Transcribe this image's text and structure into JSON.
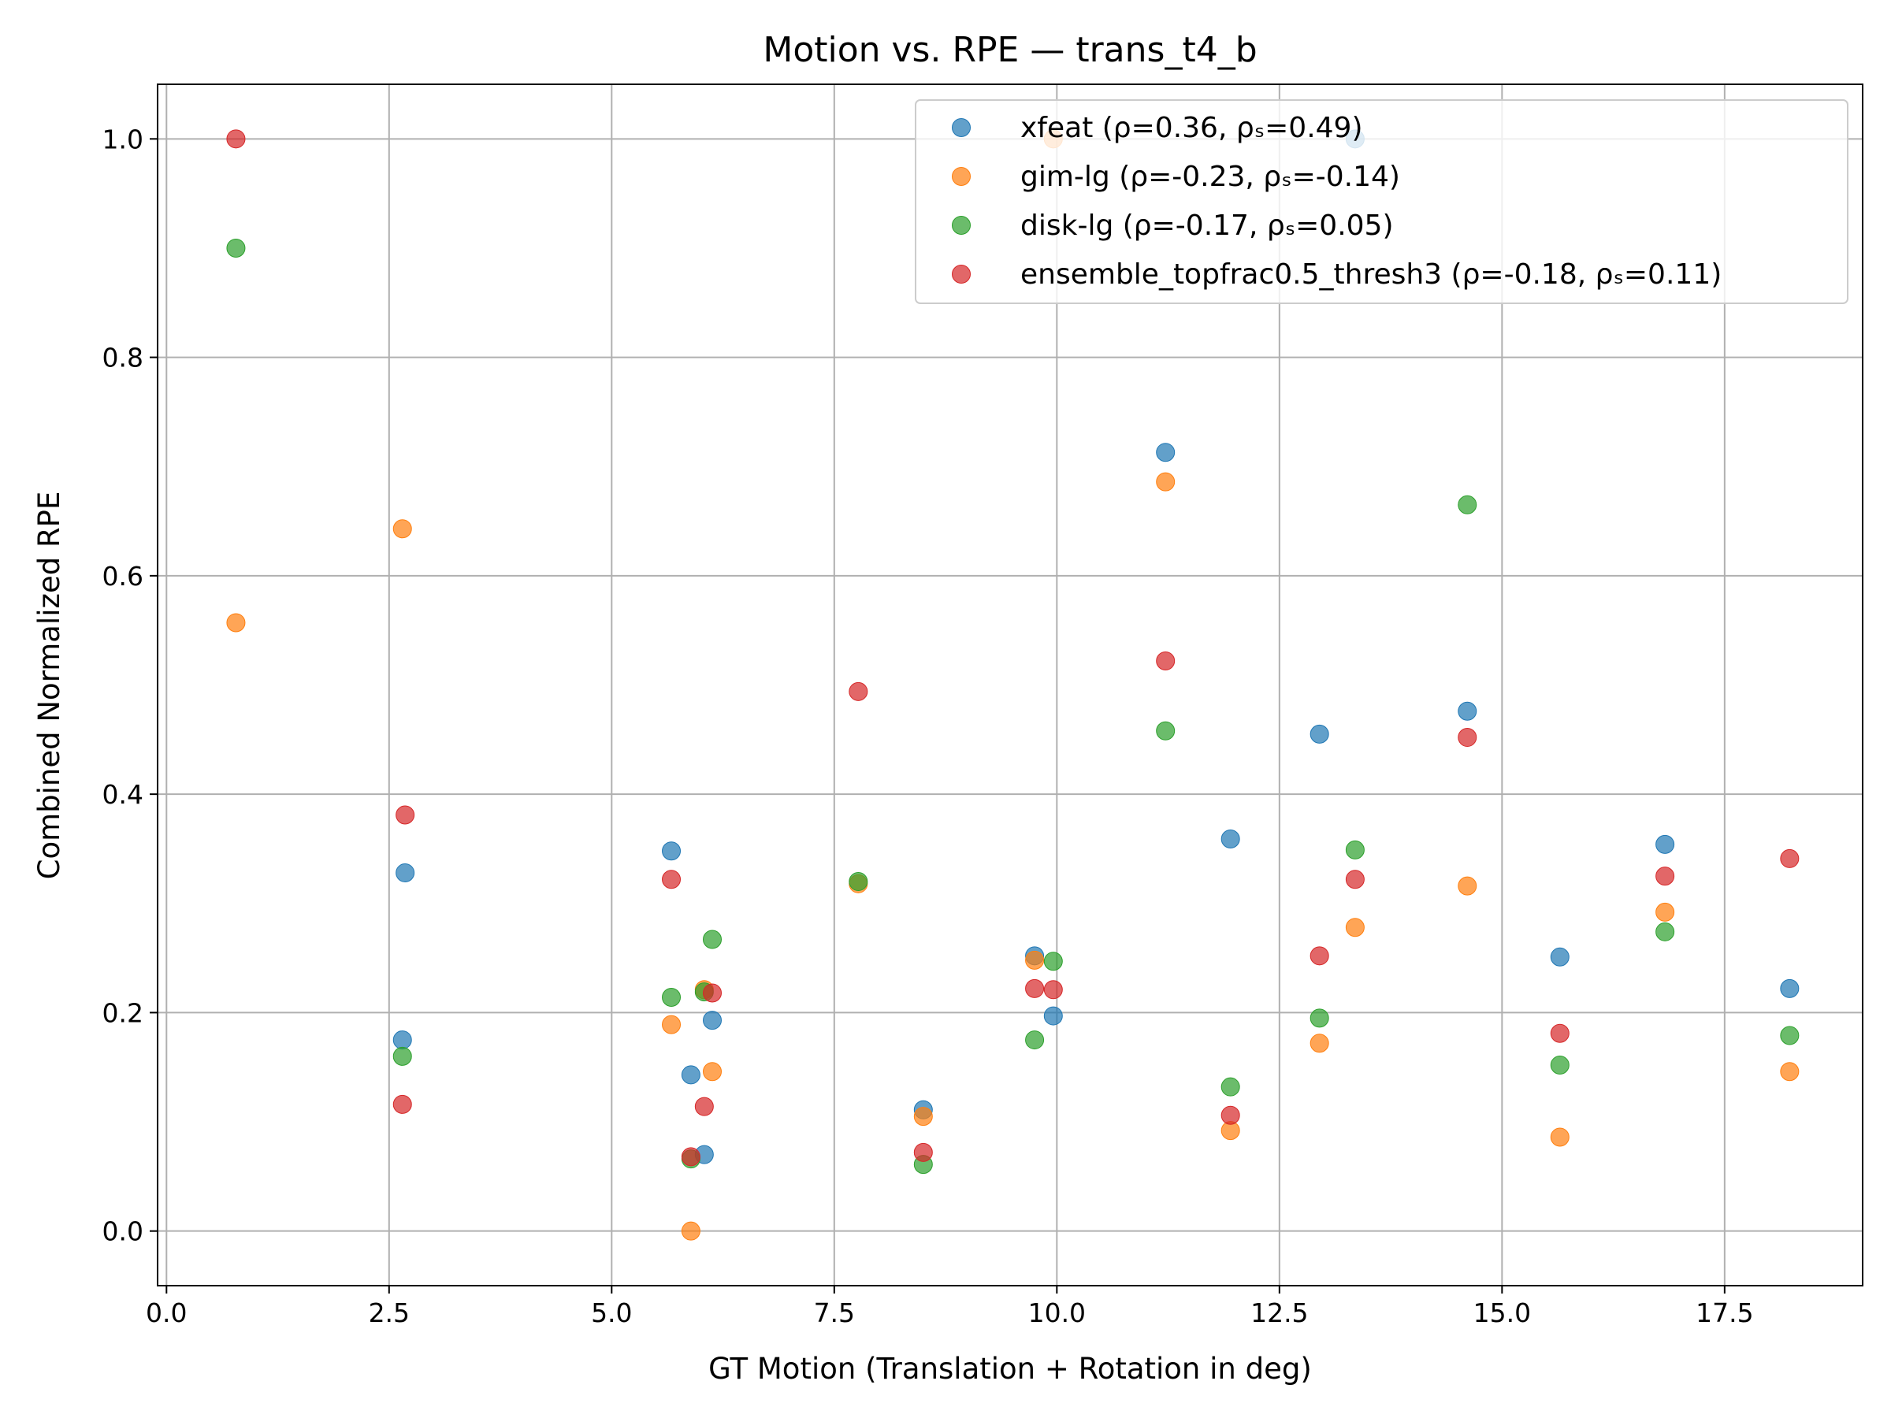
{
  "chart_data": {
    "type": "scatter",
    "title": "Motion vs. RPE — trans_t4_b",
    "xlabel": "GT Motion (Translation + Rotation in deg)",
    "ylabel": "Combined Normalized RPE",
    "xlim": [
      -0.1,
      19.05
    ],
    "ylim": [
      -0.05,
      1.05
    ],
    "xticks": [
      "0.0",
      "2.5",
      "5.0",
      "7.5",
      "10.0",
      "12.5",
      "15.0",
      "17.5"
    ],
    "yticks": [
      "0.0",
      "0.2",
      "0.4",
      "0.6",
      "0.8",
      "1.0"
    ],
    "grid": true,
    "legend_position": "top-right",
    "series": [
      {
        "name": "xfeat (ρ=0.36, ρₛ=0.49)",
        "color": "#1f77b4",
        "points": [
          [
            2.68,
            0.328
          ],
          [
            2.65,
            0.175
          ],
          [
            5.67,
            0.348
          ],
          [
            5.89,
            0.143
          ],
          [
            6.04,
            0.07
          ],
          [
            6.13,
            0.193
          ],
          [
            8.5,
            0.111
          ],
          [
            9.75,
            0.252
          ],
          [
            9.96,
            0.197
          ],
          [
            11.22,
            0.713
          ],
          [
            11.95,
            0.359
          ],
          [
            12.95,
            0.455
          ],
          [
            13.35,
            1.0
          ],
          [
            14.61,
            0.476
          ],
          [
            15.65,
            0.251
          ],
          [
            16.83,
            0.354
          ],
          [
            18.23,
            0.222
          ]
        ]
      },
      {
        "name": "gim-lg (ρ=-0.23, ρₛ=-0.14)",
        "color": "#ff7f0e",
        "points": [
          [
            0.78,
            0.557
          ],
          [
            2.65,
            0.643
          ],
          [
            5.67,
            0.189
          ],
          [
            5.89,
            0.0
          ],
          [
            6.04,
            0.221
          ],
          [
            6.13,
            0.146
          ],
          [
            7.77,
            0.318
          ],
          [
            8.5,
            0.105
          ],
          [
            9.75,
            0.248
          ],
          [
            9.96,
            1.0
          ],
          [
            11.22,
            0.686
          ],
          [
            11.95,
            0.092
          ],
          [
            12.95,
            0.172
          ],
          [
            13.35,
            0.278
          ],
          [
            14.61,
            0.316
          ],
          [
            15.65,
            0.086
          ],
          [
            16.83,
            0.292
          ],
          [
            18.23,
            0.146
          ]
        ]
      },
      {
        "name": "disk-lg (ρ=-0.17, ρₛ=0.05)",
        "color": "#2ca02c",
        "points": [
          [
            0.78,
            0.9
          ],
          [
            2.65,
            0.16
          ],
          [
            5.67,
            0.214
          ],
          [
            5.89,
            0.066
          ],
          [
            6.04,
            0.219
          ],
          [
            6.13,
            0.267
          ],
          [
            7.77,
            0.32
          ],
          [
            8.5,
            0.061
          ],
          [
            9.75,
            0.175
          ],
          [
            9.96,
            0.247
          ],
          [
            11.22,
            0.458
          ],
          [
            11.95,
            0.132
          ],
          [
            12.95,
            0.195
          ],
          [
            13.35,
            0.349
          ],
          [
            14.61,
            0.665
          ],
          [
            15.65,
            0.152
          ],
          [
            16.83,
            0.274
          ],
          [
            18.23,
            0.179
          ]
        ]
      },
      {
        "name": "ensemble_topfrac0.5_thresh3 (ρ=-0.18, ρₛ=0.11)",
        "color": "#d62728",
        "points": [
          [
            0.78,
            1.0
          ],
          [
            2.65,
            0.116
          ],
          [
            2.68,
            0.381
          ],
          [
            5.67,
            0.322
          ],
          [
            5.89,
            0.068
          ],
          [
            6.04,
            0.114
          ],
          [
            6.13,
            0.218
          ],
          [
            7.77,
            0.494
          ],
          [
            8.5,
            0.072
          ],
          [
            9.75,
            0.222
          ],
          [
            9.96,
            0.221
          ],
          [
            11.22,
            0.522
          ],
          [
            11.95,
            0.106
          ],
          [
            12.95,
            0.252
          ],
          [
            13.35,
            0.322
          ],
          [
            14.61,
            0.452
          ],
          [
            15.65,
            0.181
          ],
          [
            16.83,
            0.325
          ],
          [
            18.23,
            0.341
          ]
        ]
      }
    ]
  }
}
